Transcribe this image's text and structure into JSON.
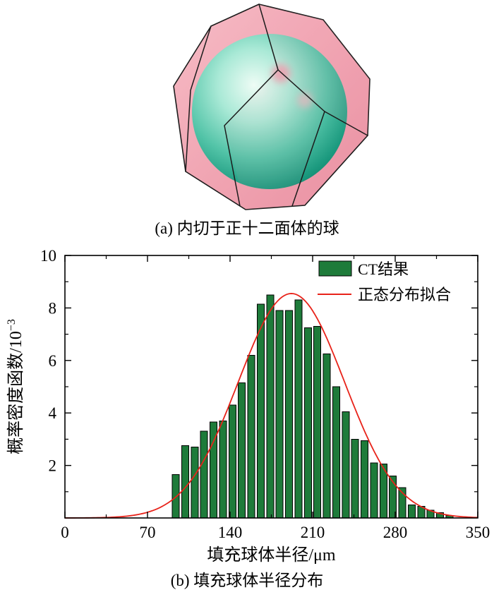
{
  "figure_a": {
    "caption": "(a) 内切于正十二面体的球",
    "colors": {
      "face_pink": "#f0a3b1",
      "edge_black": "#1c1c1c",
      "sphere_teal": "#2fae92",
      "sphere_highlight": "#eefcf5"
    }
  },
  "figure_b": {
    "caption": "(b) 填充球体半径分布"
  },
  "chart_data": {
    "type": "bar",
    "title": "",
    "xlabel": "填充球体半径/μm",
    "ylabel": "概率密度函数/10⁻³",
    "ylabel_main": "概率密度函数/10",
    "ylabel_sup": "−3",
    "xlim": [
      0,
      350
    ],
    "ylim": [
      0,
      10
    ],
    "x_major_ticks": [
      0,
      70,
      140,
      210,
      280,
      350
    ],
    "y_major_ticks": [
      2,
      4,
      6,
      8,
      10
    ],
    "x_minor_start": 35,
    "x_minor_step": 70,
    "y_minor_start": 1,
    "y_minor_step": 2,
    "grid": "off",
    "legend_position": "top-right-inside",
    "legend": [
      {
        "label": "CT结果",
        "type": "bar",
        "color": "#1e7b3a"
      },
      {
        "label": "正态分布拟合",
        "type": "line",
        "color": "#e8231a"
      }
    ],
    "bars": {
      "color": "#1e7b3a",
      "edge_color": "#000000",
      "bin_width": 6,
      "centers": [
        94,
        102,
        110,
        118,
        126,
        134,
        142,
        150,
        158,
        166,
        174,
        182,
        190,
        198,
        206,
        214,
        222,
        230,
        238,
        246,
        254,
        262,
        270,
        278,
        286,
        294,
        302,
        310,
        318,
        326
      ],
      "values": [
        1.65,
        2.75,
        2.7,
        3.3,
        3.65,
        3.7,
        4.3,
        5.15,
        6.2,
        8.15,
        8.5,
        7.9,
        7.9,
        8.3,
        7.25,
        7.3,
        6.25,
        5.0,
        4.05,
        3.0,
        2.95,
        2.1,
        2.05,
        1.6,
        1.15,
        0.5,
        0.45,
        0.3,
        0.2,
        0.1
      ]
    },
    "fit": {
      "type": "gaussian",
      "mean": 192,
      "sigma": 45,
      "amplitude": 8.55,
      "color": "#e8231a"
    }
  }
}
